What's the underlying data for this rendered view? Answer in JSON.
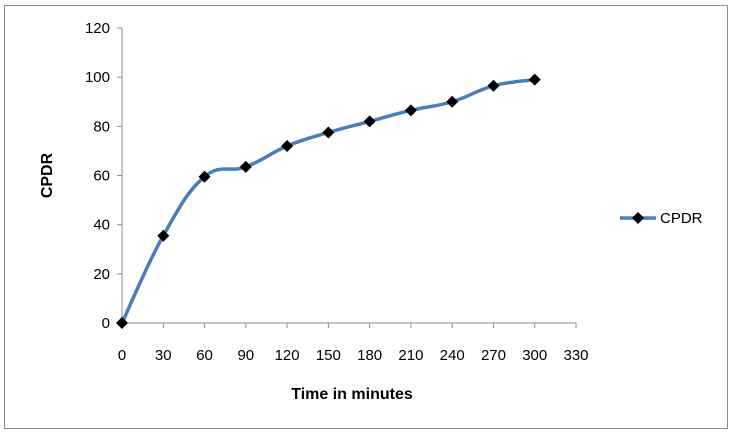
{
  "chart_data": {
    "type": "line",
    "title": "",
    "xlabel": "Time in minutes",
    "ylabel": "CPDR",
    "x": [
      0,
      30,
      60,
      90,
      120,
      150,
      180,
      210,
      240,
      270,
      300
    ],
    "series": [
      {
        "name": "CPDR",
        "values": [
          0,
          35.5,
          59.5,
          63.5,
          72,
          77.5,
          82,
          86.5,
          90,
          96.5,
          99
        ],
        "color": "#4a7ebb",
        "marker": "diamond",
        "marker_color": "#000000",
        "smooth": true
      }
    ],
    "xlim": [
      0,
      330
    ],
    "ylim": [
      0,
      120
    ],
    "xticks": [
      0,
      30,
      60,
      90,
      120,
      150,
      180,
      210,
      240,
      270,
      300,
      330
    ],
    "yticks": [
      0,
      20,
      40,
      60,
      80,
      100,
      120
    ],
    "grid": false,
    "legend_position": "right"
  }
}
